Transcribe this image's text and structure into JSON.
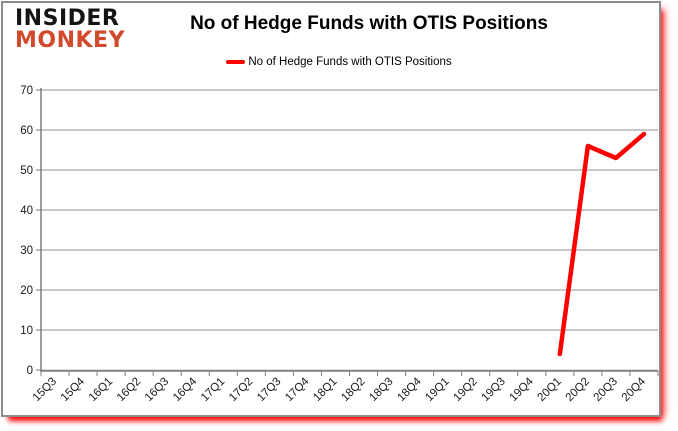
{
  "logo": {
    "line1": "INSIDER",
    "line2": "MONKEY",
    "line1_color": "#141414",
    "line2_color": "#d04a2b"
  },
  "header": {
    "title": "No of Hedge Funds with OTIS Positions"
  },
  "legend": {
    "label": "No of Hedge Funds with OTIS Positions",
    "swatch_color": "#ff0000"
  },
  "colors": {
    "series_line": "#ff0000",
    "gridline": "#a6a6a6",
    "axis": "#7f7f7f",
    "tick_label": "#1a1a1a",
    "frame_border": "#8c8c8c",
    "shadow": "#ff0000"
  },
  "chart_data": {
    "type": "line",
    "title": "No of Hedge Funds with OTIS Positions",
    "categories": [
      "15Q3",
      "15Q4",
      "16Q1",
      "16Q2",
      "16Q3",
      "16Q4",
      "17Q1",
      "17Q2",
      "17Q3",
      "17Q4",
      "18Q1",
      "18Q2",
      "18Q3",
      "18Q4",
      "19Q1",
      "19Q2",
      "19Q3",
      "19Q4",
      "20Q1",
      "20Q2",
      "20Q3",
      "20Q4"
    ],
    "series": [
      {
        "name": "No of Hedge Funds with OTIS Positions",
        "color": "#ff0000",
        "values": [
          null,
          null,
          null,
          null,
          null,
          null,
          null,
          null,
          null,
          null,
          null,
          null,
          null,
          null,
          null,
          null,
          null,
          null,
          4,
          56,
          53,
          59
        ]
      }
    ],
    "xlabel": "",
    "ylabel": "",
    "ylim": [
      0,
      70
    ],
    "yticks": [
      0,
      10,
      20,
      30,
      40,
      50,
      60,
      70
    ],
    "grid": "horizontal",
    "legend_position": "top"
  }
}
